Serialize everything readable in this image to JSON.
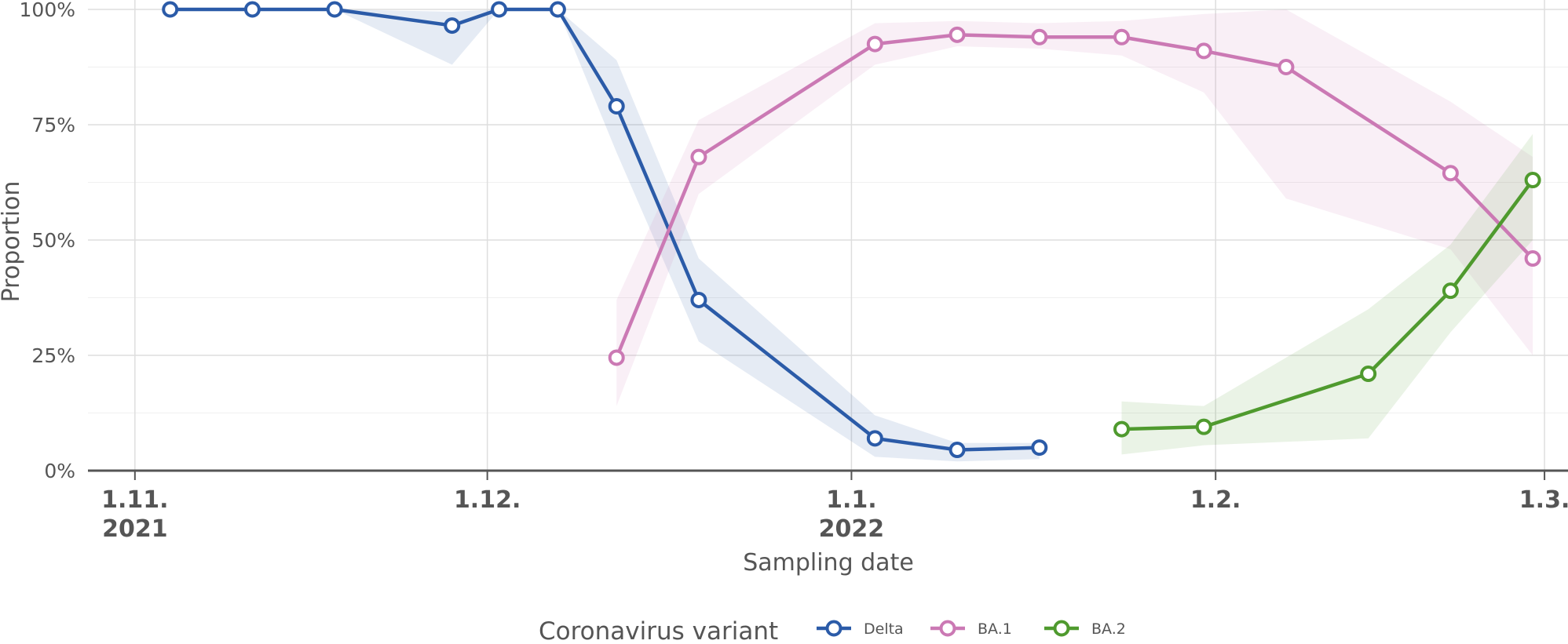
{
  "chart_data": {
    "type": "line",
    "title": "",
    "xlabel": "Sampling date",
    "ylabel": "Proportion",
    "xlim": [
      "2021-10-28",
      "2022-03-03"
    ],
    "ylim": [
      0,
      100
    ],
    "y_ticks": [
      {
        "value": 0,
        "label": "0%"
      },
      {
        "value": 25,
        "label": "25%"
      },
      {
        "value": 50,
        "label": "50%"
      },
      {
        "value": 75,
        "label": "75%"
      },
      {
        "value": 100,
        "label": "100%"
      }
    ],
    "x_ticks": [
      {
        "date": "2021-11-01",
        "line1": "1.11.",
        "line2": "2021"
      },
      {
        "date": "2021-12-01",
        "line1": "1.12.",
        "line2": ""
      },
      {
        "date": "2022-01-01",
        "line1": "1.1.",
        "line2": "2022"
      },
      {
        "date": "2022-02-01",
        "line1": "1.2.",
        "line2": ""
      },
      {
        "date": "2022-03-01",
        "line1": "1.3.",
        "line2": ""
      }
    ],
    "grid": true,
    "legend": {
      "title": "Coronavirus variant",
      "position": "bottom"
    },
    "series": [
      {
        "name": "Delta",
        "color": "#2b5ba8",
        "points": [
          {
            "x": "2021-11-04",
            "y": 100.0,
            "lo": 100.0,
            "hi": 100.0
          },
          {
            "x": "2021-11-11",
            "y": 100.0,
            "lo": 100.0,
            "hi": 100.0
          },
          {
            "x": "2021-11-18",
            "y": 100.0,
            "lo": 100.0,
            "hi": 100.0
          },
          {
            "x": "2021-11-28",
            "y": 96.5,
            "lo": 88.0,
            "hi": 99.5
          },
          {
            "x": "2021-12-02",
            "y": 100.0,
            "lo": 100.0,
            "hi": 100.0
          },
          {
            "x": "2021-12-07",
            "y": 100.0,
            "lo": 100.0,
            "hi": 100.0
          },
          {
            "x": "2021-12-12",
            "y": 79.0,
            "lo": 69.0,
            "hi": 89.0
          },
          {
            "x": "2021-12-19",
            "y": 37.0,
            "lo": 28.0,
            "hi": 46.0
          },
          {
            "x": "2022-01-03",
            "y": 7.0,
            "lo": 3.0,
            "hi": 12.0
          },
          {
            "x": "2022-01-10",
            "y": 4.5,
            "lo": 2.0,
            "hi": 6.0
          },
          {
            "x": "2022-01-17",
            "y": 5.0,
            "lo": 2.5,
            "hi": 6.0
          }
        ]
      },
      {
        "name": "BA.1",
        "color": "#cb79b4",
        "points": [
          {
            "x": "2021-12-12",
            "y": 24.5,
            "lo": 14.0,
            "hi": 37.0
          },
          {
            "x": "2021-12-19",
            "y": 68.0,
            "lo": 60.0,
            "hi": 76.0
          },
          {
            "x": "2022-01-03",
            "y": 92.5,
            "lo": 88.0,
            "hi": 97.0
          },
          {
            "x": "2022-01-10",
            "y": 94.5,
            "lo": 92.0,
            "hi": 97.5
          },
          {
            "x": "2022-01-17",
            "y": 94.0,
            "lo": 91.5,
            "hi": 97.0
          },
          {
            "x": "2022-01-24",
            "y": 94.0,
            "lo": 90.0,
            "hi": 97.5
          },
          {
            "x": "2022-01-31",
            "y": 91.0,
            "lo": 82.0,
            "hi": 99.0
          },
          {
            "x": "2022-02-07",
            "y": 87.5,
            "lo": 59.0,
            "hi": 100.0
          },
          {
            "x": "2022-02-21",
            "y": 64.5,
            "lo": 48.0,
            "hi": 80.0
          },
          {
            "x": "2022-02-28",
            "y": 46.0,
            "lo": 25.0,
            "hi": 68.0
          }
        ]
      },
      {
        "name": "BA.2",
        "color": "#4f9a2e",
        "points": [
          {
            "x": "2022-01-24",
            "y": 9.0,
            "lo": 3.5,
            "hi": 15.0
          },
          {
            "x": "2022-01-31",
            "y": 9.5,
            "lo": 5.5,
            "hi": 14.0
          },
          {
            "x": "2022-02-14",
            "y": 21.0,
            "lo": 7.0,
            "hi": 35.0
          },
          {
            "x": "2022-02-21",
            "y": 39.0,
            "lo": 30.0,
            "hi": 49.0
          },
          {
            "x": "2022-02-28",
            "y": 63.0,
            "lo": 50.0,
            "hi": 73.0
          }
        ]
      }
    ]
  }
}
